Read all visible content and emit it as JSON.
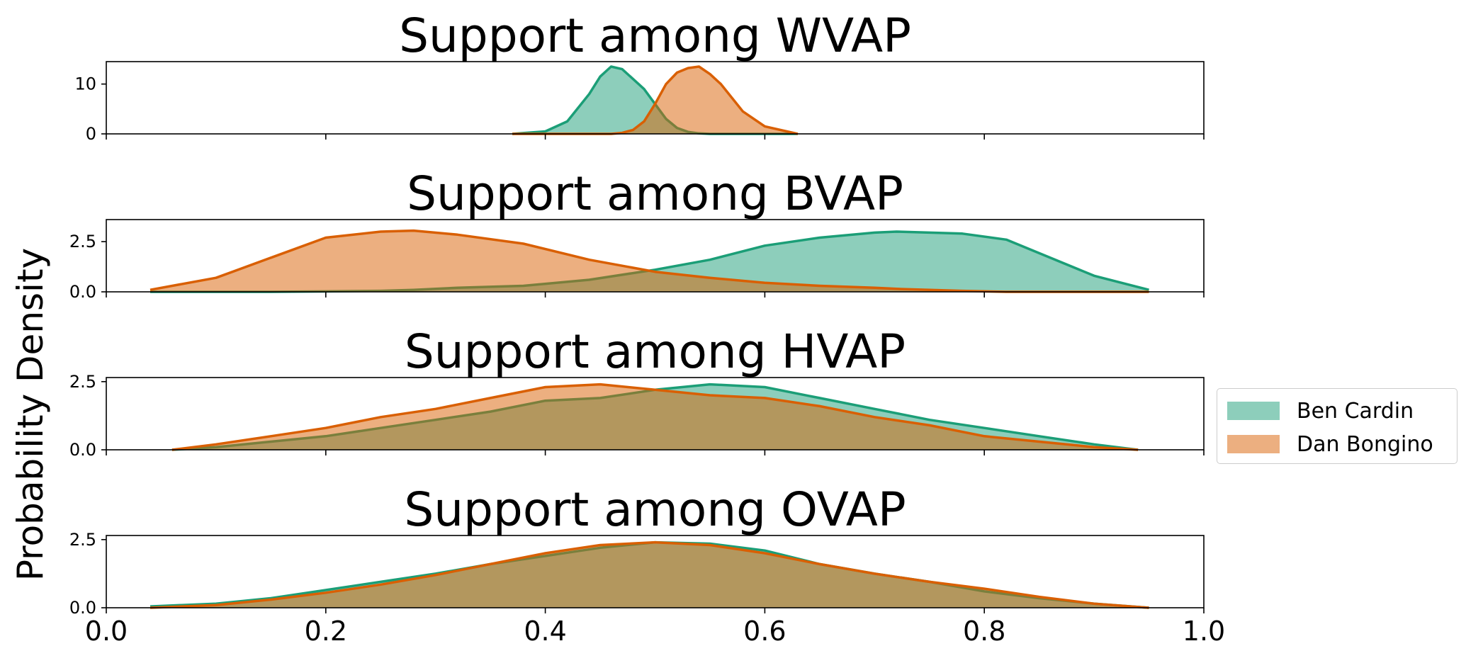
{
  "ylabel": "Probability Density",
  "colors": {
    "Ben Cardin": "#1b9e77",
    "Dan Bongino": "#d95f02"
  },
  "chart_data": [
    {
      "type": "area",
      "title": "Support among WVAP",
      "xlim": [
        0.0,
        1.0
      ],
      "ylim": [
        0,
        14.5
      ],
      "yticks": [
        0,
        10
      ],
      "ytick_labels": [
        "0",
        "10"
      ],
      "x": [
        0.37,
        0.4,
        0.42,
        0.44,
        0.45,
        0.46,
        0.47,
        0.48,
        0.49,
        0.5,
        0.51,
        0.52,
        0.53,
        0.54,
        0.55,
        0.56,
        0.58,
        0.6,
        0.63
      ],
      "series": [
        {
          "name": "Ben Cardin",
          "values": [
            0.0,
            0.5,
            2.5,
            8.0,
            11.5,
            13.5,
            13.0,
            11.0,
            9.0,
            6.0,
            3.0,
            1.2,
            0.4,
            0.1,
            0.0,
            0.0,
            0.0,
            0.0,
            0.0
          ]
        },
        {
          "name": "Dan Bongino",
          "values": [
            0.0,
            0.0,
            0.0,
            0.0,
            0.0,
            0.0,
            0.2,
            0.8,
            2.5,
            6.0,
            10.0,
            12.3,
            13.2,
            13.5,
            12.0,
            10.0,
            4.5,
            1.5,
            0.0
          ]
        }
      ]
    },
    {
      "type": "area",
      "title": "Support among BVAP",
      "xlim": [
        0.0,
        1.0
      ],
      "ylim": [
        0,
        3.6
      ],
      "yticks": [
        0.0,
        2.5
      ],
      "ytick_labels": [
        "0.0",
        "2.5"
      ],
      "x": [
        0.04,
        0.1,
        0.15,
        0.2,
        0.25,
        0.28,
        0.32,
        0.38,
        0.44,
        0.5,
        0.55,
        0.6,
        0.65,
        0.7,
        0.72,
        0.78,
        0.82,
        0.86,
        0.9,
        0.95
      ],
      "series": [
        {
          "name": "Ben Cardin",
          "values": [
            0.0,
            0.0,
            0.0,
            0.02,
            0.05,
            0.1,
            0.2,
            0.3,
            0.6,
            1.1,
            1.6,
            2.3,
            2.7,
            2.95,
            3.0,
            2.9,
            2.6,
            1.7,
            0.8,
            0.1
          ]
        },
        {
          "name": "Dan Bongino",
          "values": [
            0.1,
            0.7,
            1.7,
            2.7,
            3.0,
            3.05,
            2.85,
            2.4,
            1.6,
            1.0,
            0.7,
            0.45,
            0.3,
            0.2,
            0.15,
            0.05,
            0.0,
            0.0,
            0.0,
            0.0
          ]
        }
      ]
    },
    {
      "type": "area",
      "title": "Support among HVAP",
      "xlim": [
        0.0,
        1.0
      ],
      "ylim": [
        0,
        2.65
      ],
      "yticks": [
        0.0,
        2.5
      ],
      "ytick_labels": [
        "0.0",
        "2.5"
      ],
      "x": [
        0.06,
        0.1,
        0.15,
        0.2,
        0.25,
        0.3,
        0.35,
        0.4,
        0.45,
        0.5,
        0.55,
        0.6,
        0.65,
        0.7,
        0.75,
        0.8,
        0.85,
        0.9,
        0.94
      ],
      "series": [
        {
          "name": "Ben Cardin",
          "values": [
            0.0,
            0.1,
            0.3,
            0.5,
            0.8,
            1.1,
            1.4,
            1.8,
            1.9,
            2.2,
            2.4,
            2.3,
            1.9,
            1.5,
            1.1,
            0.8,
            0.5,
            0.2,
            0.0
          ]
        },
        {
          "name": "Dan Bongino",
          "values": [
            0.0,
            0.2,
            0.5,
            0.8,
            1.2,
            1.5,
            1.9,
            2.3,
            2.4,
            2.2,
            2.0,
            1.9,
            1.6,
            1.2,
            0.9,
            0.5,
            0.3,
            0.1,
            0.0
          ]
        }
      ]
    },
    {
      "type": "area",
      "title": "Support among OVAP",
      "xlim": [
        0.0,
        1.0
      ],
      "ylim": [
        0,
        2.65
      ],
      "yticks": [
        0.0,
        2.5
      ],
      "ytick_labels": [
        "0.0",
        "2.5"
      ],
      "xticks": [
        0.0,
        0.2,
        0.4,
        0.6,
        0.8,
        1.0
      ],
      "xtick_labels": [
        "0.0",
        "0.2",
        "0.4",
        "0.6",
        "0.8",
        "1.0"
      ],
      "x": [
        0.04,
        0.1,
        0.15,
        0.2,
        0.25,
        0.3,
        0.35,
        0.4,
        0.45,
        0.5,
        0.55,
        0.6,
        0.65,
        0.7,
        0.75,
        0.8,
        0.85,
        0.9,
        0.95
      ],
      "series": [
        {
          "name": "Ben Cardin",
          "values": [
            0.05,
            0.15,
            0.35,
            0.65,
            0.95,
            1.25,
            1.6,
            1.9,
            2.2,
            2.4,
            2.35,
            2.1,
            1.6,
            1.25,
            0.95,
            0.6,
            0.35,
            0.15,
            0.0
          ]
        },
        {
          "name": "Dan Bongino",
          "values": [
            0.0,
            0.1,
            0.3,
            0.55,
            0.85,
            1.2,
            1.6,
            2.0,
            2.3,
            2.4,
            2.3,
            2.0,
            1.6,
            1.25,
            0.95,
            0.7,
            0.4,
            0.15,
            0.0
          ]
        }
      ]
    }
  ],
  "legend": {
    "placement": "right",
    "items": [
      {
        "label": "Ben Cardin",
        "color": "#1b9e77"
      },
      {
        "label": "Dan Bongino",
        "color": "#d95f02"
      }
    ]
  }
}
